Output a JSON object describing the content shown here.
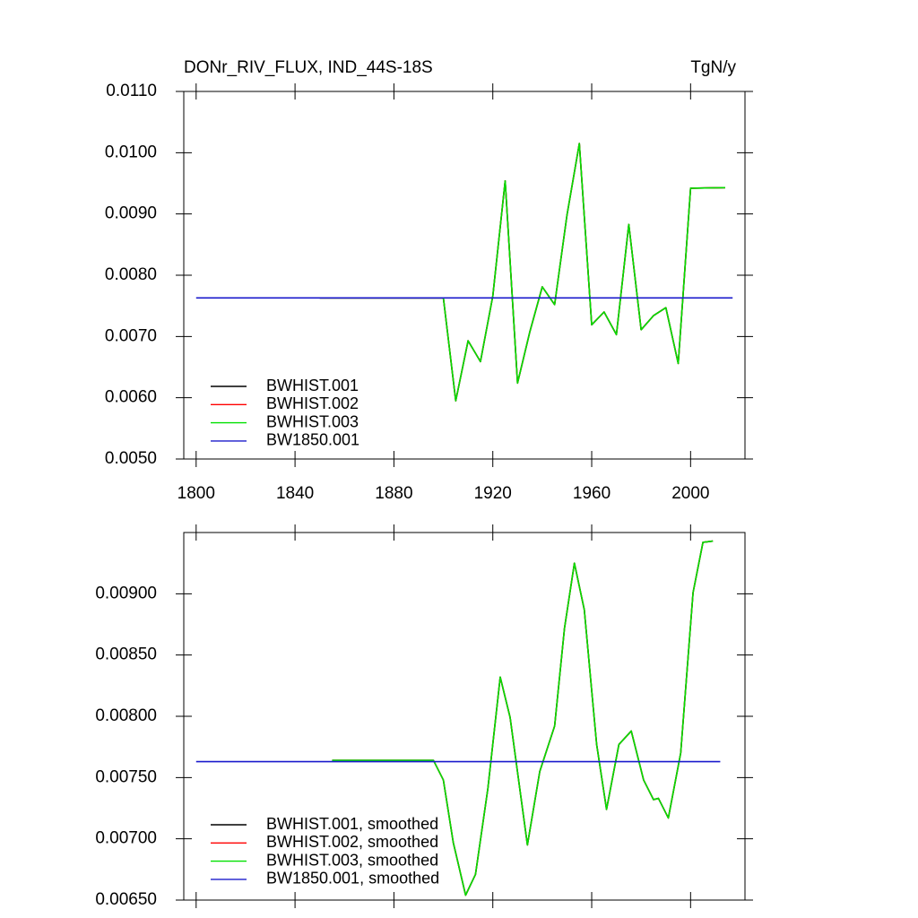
{
  "chart_data": [
    {
      "type": "line",
      "title": "DONr_RIV_FLUX, IND_44S-18S",
      "units": "TgN/y",
      "xlim": [
        1795,
        2022
      ],
      "xticks": [
        1800,
        1840,
        1880,
        1920,
        1960,
        2000
      ],
      "ylim": [
        0.005,
        0.011
      ],
      "yticks": [
        {
          "value": 0.005,
          "label": "0.0050"
        },
        {
          "value": 0.006,
          "label": "0.0060"
        },
        {
          "value": 0.007,
          "label": "0.0070"
        },
        {
          "value": 0.008,
          "label": "0.0080"
        },
        {
          "value": 0.009,
          "label": "0.0090"
        },
        {
          "value": 0.01,
          "label": "0.0100"
        },
        {
          "value": 0.011,
          "label": "0.0110"
        }
      ],
      "series": [
        {
          "name": "BWHIST.001",
          "color": "#000000",
          "x": [
            1850,
            1900,
            1905,
            1910,
            1915,
            1920,
            1925,
            1930,
            1935,
            1940,
            1945,
            1950,
            1955,
            1960,
            1965,
            1970,
            1975,
            1980,
            1985,
            1990,
            1995,
            2000,
            2014
          ],
          "values": [
            0.00763,
            0.00763,
            0.00595,
            0.00693,
            0.00659,
            0.00766,
            0.00954,
            0.00624,
            0.00708,
            0.00781,
            0.00752,
            0.00898,
            0.01015,
            0.00719,
            0.0074,
            0.00703,
            0.00883,
            0.00711,
            0.00734,
            0.00747,
            0.00656,
            0.00942,
            0.00943
          ]
        },
        {
          "name": "BWHIST.002",
          "color": "#ff0000",
          "x": [
            1850,
            1900,
            1905,
            1910,
            1915,
            1920,
            1925,
            1930,
            1935,
            1940,
            1945,
            1950,
            1955,
            1960,
            1965,
            1970,
            1975,
            1980,
            1985,
            1990,
            1995,
            2000,
            2014
          ],
          "values": [
            0.00763,
            0.00763,
            0.00595,
            0.00693,
            0.00659,
            0.00766,
            0.00954,
            0.00624,
            0.00708,
            0.00781,
            0.00752,
            0.00898,
            0.01015,
            0.00719,
            0.0074,
            0.00703,
            0.00883,
            0.00711,
            0.00734,
            0.00747,
            0.00656,
            0.00942,
            0.00943
          ]
        },
        {
          "name": "BWHIST.003",
          "color": "#00e000",
          "x": [
            1850,
            1900,
            1905,
            1910,
            1915,
            1920,
            1925,
            1930,
            1935,
            1940,
            1945,
            1950,
            1955,
            1960,
            1965,
            1970,
            1975,
            1980,
            1985,
            1990,
            1995,
            2000,
            2014
          ],
          "values": [
            0.00763,
            0.00763,
            0.00595,
            0.00693,
            0.00659,
            0.00766,
            0.00954,
            0.00624,
            0.00708,
            0.00781,
            0.00752,
            0.00898,
            0.01015,
            0.00719,
            0.0074,
            0.00703,
            0.00883,
            0.00711,
            0.00734,
            0.00747,
            0.00656,
            0.00942,
            0.00943
          ]
        },
        {
          "name": "BW1850.001",
          "color": "#1a1acc",
          "x": [
            1800,
            2017
          ],
          "values": [
            0.00763,
            0.00763
          ]
        }
      ]
    },
    {
      "type": "line",
      "xlim": [
        1795,
        2022
      ],
      "xticks": [
        1800,
        1840,
        1880,
        1920,
        1960,
        2000
      ],
      "ylim": [
        0.0065,
        0.0095
      ],
      "yticks": [
        {
          "value": 0.0065,
          "label": "0.00650"
        },
        {
          "value": 0.007,
          "label": "0.00700"
        },
        {
          "value": 0.0075,
          "label": "0.00750"
        },
        {
          "value": 0.008,
          "label": "0.00800"
        },
        {
          "value": 0.0085,
          "label": "0.00850"
        },
        {
          "value": 0.009,
          "label": "0.00900"
        }
      ],
      "series": [
        {
          "name": "BWHIST.001, smoothed",
          "color": "#000000",
          "x": [
            1855,
            1896,
            1900,
            1904,
            1909,
            1913,
            1918,
            1923,
            1927,
            1934,
            1939,
            1945,
            1949,
            1953,
            1957,
            1962,
            1966,
            1971,
            1976,
            1981,
            1985,
            1987,
            1991,
            1996,
            2001,
            2005,
            2009
          ],
          "values": [
            0.00764,
            0.00764,
            0.00748,
            0.00697,
            0.00654,
            0.00671,
            0.00741,
            0.00832,
            0.00799,
            0.00695,
            0.00755,
            0.00792,
            0.00872,
            0.00925,
            0.00887,
            0.00777,
            0.00724,
            0.00777,
            0.00788,
            0.00748,
            0.00732,
            0.00733,
            0.00717,
            0.0077,
            0.00901,
            0.00942,
            0.00943
          ]
        },
        {
          "name": "BWHIST.002, smoothed",
          "color": "#ff0000",
          "x": [
            1855,
            1896,
            1900,
            1904,
            1909,
            1913,
            1918,
            1923,
            1927,
            1934,
            1939,
            1945,
            1949,
            1953,
            1957,
            1962,
            1966,
            1971,
            1976,
            1981,
            1985,
            1987,
            1991,
            1996,
            2001,
            2005,
            2009
          ],
          "values": [
            0.00764,
            0.00764,
            0.00748,
            0.00697,
            0.00654,
            0.00671,
            0.00741,
            0.00832,
            0.00799,
            0.00695,
            0.00755,
            0.00792,
            0.00872,
            0.00925,
            0.00887,
            0.00777,
            0.00724,
            0.00777,
            0.00788,
            0.00748,
            0.00732,
            0.00733,
            0.00717,
            0.0077,
            0.00901,
            0.00942,
            0.00943
          ]
        },
        {
          "name": "BWHIST.003, smoothed",
          "color": "#00e000",
          "x": [
            1855,
            1896,
            1900,
            1904,
            1909,
            1913,
            1918,
            1923,
            1927,
            1934,
            1939,
            1945,
            1949,
            1953,
            1957,
            1962,
            1966,
            1971,
            1976,
            1981,
            1985,
            1987,
            1991,
            1996,
            2001,
            2005,
            2009
          ],
          "values": [
            0.00764,
            0.00764,
            0.00748,
            0.00697,
            0.00654,
            0.00671,
            0.00741,
            0.00832,
            0.00799,
            0.00695,
            0.00755,
            0.00792,
            0.00872,
            0.00925,
            0.00887,
            0.00777,
            0.00724,
            0.00777,
            0.00788,
            0.00748,
            0.00732,
            0.00733,
            0.00717,
            0.0077,
            0.00901,
            0.00942,
            0.00943
          ]
        },
        {
          "name": "BW1850.001, smoothed",
          "color": "#1a1acc",
          "x": [
            1800,
            2012
          ],
          "values": [
            0.00763,
            0.00763
          ]
        }
      ]
    }
  ]
}
